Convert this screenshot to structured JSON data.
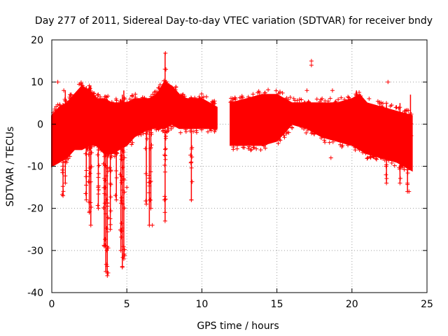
{
  "chart_data": {
    "type": "scatter",
    "title": "Day 277 of 2011, Sidereal Day-to-day VTEC variation (SDTVAR) for receiver bndy",
    "xlabel": "GPS time / hours",
    "ylabel": "SDTVAR / TECUs",
    "xlim": [
      0,
      25
    ],
    "ylim": [
      -40,
      20
    ],
    "xticks": [
      0,
      5,
      10,
      15,
      20,
      25
    ],
    "yticks": [
      -40,
      -30,
      -20,
      -10,
      0,
      10,
      20
    ],
    "grid": true,
    "marker": "+",
    "color": "#ff0000",
    "band_envelope": {
      "description": "dense band of points, upper/lower bound vs GPS time",
      "x": [
        0.0,
        0.5,
        1.0,
        1.5,
        2.0,
        2.5,
        3.0,
        3.5,
        4.0,
        4.5,
        5.0,
        5.5,
        6.0,
        6.5,
        7.0,
        7.5,
        8.0,
        8.5,
        9.0,
        9.5,
        10.0,
        10.5,
        11.0
      ],
      "upper": [
        2,
        4,
        5,
        7,
        9,
        8,
        6,
        6,
        5,
        5,
        5,
        6,
        6,
        6,
        7,
        10,
        9,
        7,
        6,
        6,
        6,
        5,
        4
      ],
      "lower": [
        -10,
        -9,
        -8,
        -6,
        -6,
        -5,
        -5,
        -7,
        -7,
        -6,
        -5,
        -3,
        -2,
        -1,
        -1,
        -1,
        0,
        -1,
        -1,
        -1,
        -1,
        -1,
        -1
      ]
    },
    "band_envelope_2": {
      "x": [
        11.9,
        13.0,
        14.0,
        15.0,
        16.0,
        17.0,
        18.0,
        19.0,
        20.0,
        20.5,
        21.0,
        22.0,
        23.0,
        24.0
      ],
      "upper": [
        5,
        6,
        7,
        7,
        5,
        5,
        5,
        5,
        6,
        7,
        5,
        4,
        3,
        2
      ],
      "lower": [
        -5,
        -5,
        -5,
        -4,
        0,
        -1,
        -3,
        -4,
        -5,
        -6,
        -7,
        -8,
        -9,
        -11
      ]
    },
    "excursions": [
      {
        "x": 0.75,
        "ymin": -17,
        "ymax": 5
      },
      {
        "x": 0.9,
        "ymin": -14,
        "ymax": 8
      },
      {
        "x": 2.3,
        "ymin": -18,
        "ymax": 9
      },
      {
        "x": 2.5,
        "ymin": -21,
        "ymax": 9
      },
      {
        "x": 2.6,
        "ymin": -24,
        "ymax": 9
      },
      {
        "x": 3.1,
        "ymin": -20,
        "ymax": 5
      },
      {
        "x": 3.5,
        "ymin": -29,
        "ymax": 6
      },
      {
        "x": 3.6,
        "ymin": -35,
        "ymax": 6
      },
      {
        "x": 3.7,
        "ymin": -36,
        "ymax": 6
      },
      {
        "x": 3.9,
        "ymin": -25,
        "ymax": 5
      },
      {
        "x": 4.3,
        "ymin": -18,
        "ymax": 5
      },
      {
        "x": 4.6,
        "ymin": -30,
        "ymax": 6
      },
      {
        "x": 4.7,
        "ymin": -34,
        "ymax": 7
      },
      {
        "x": 4.8,
        "ymin": -32,
        "ymax": 8
      },
      {
        "x": 6.3,
        "ymin": -19,
        "ymax": 5
      },
      {
        "x": 6.5,
        "ymin": -24,
        "ymax": 6
      },
      {
        "x": 6.6,
        "ymin": -20,
        "ymax": 6
      },
      {
        "x": 7.55,
        "ymin": -23,
        "ymax": 17
      },
      {
        "x": 9.3,
        "ymin": -18,
        "ymax": 5
      },
      {
        "x": 20.3,
        "ymin": -4,
        "ymax": 8
      },
      {
        "x": 22.3,
        "ymin": -14,
        "ymax": 5
      },
      {
        "x": 23.2,
        "ymin": -14,
        "ymax": 5
      },
      {
        "x": 23.7,
        "ymin": -16,
        "ymax": 2
      },
      {
        "x": 23.9,
        "ymin": -10,
        "ymax": 7
      }
    ],
    "isolated_points": [
      {
        "x": 0.4,
        "y": 10
      },
      {
        "x": 0.8,
        "y": 8
      },
      {
        "x": 17.3,
        "y": 15
      },
      {
        "x": 17.3,
        "y": 14
      },
      {
        "x": 17.0,
        "y": 8
      },
      {
        "x": 18.7,
        "y": 8
      },
      {
        "x": 22.4,
        "y": 10
      },
      {
        "x": 23.8,
        "y": -16
      },
      {
        "x": 23.7,
        "y": -14
      },
      {
        "x": 18.6,
        "y": -8
      },
      {
        "x": 6.7,
        "y": -24
      },
      {
        "x": 7.5,
        "y": -18
      },
      {
        "x": 9.3,
        "y": -18
      },
      {
        "x": 5.0,
        "y": -15
      }
    ],
    "data_gap": {
      "from": 11.0,
      "to": 11.9
    }
  }
}
